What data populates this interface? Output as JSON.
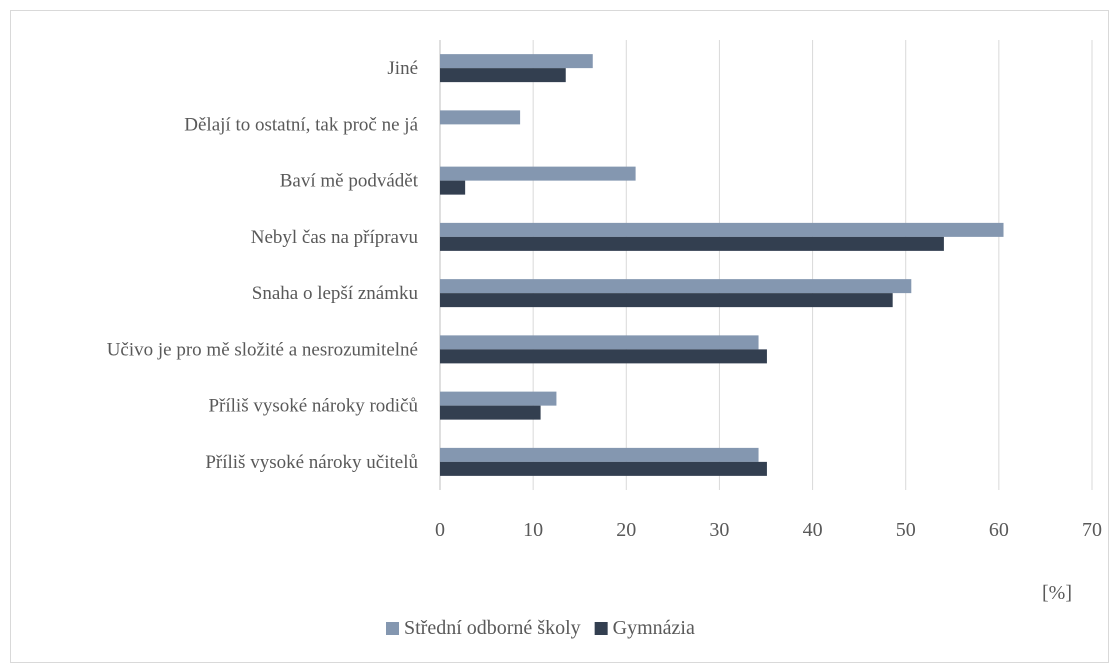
{
  "chart_data": {
    "type": "bar",
    "orientation": "horizontal",
    "categories": [
      "Příliš vysoké nároky učitelů",
      "Příliš vysoké nároky rodičů",
      "Učivo je pro mě složité a nesrozumitelné",
      "Snaha o lepší známku",
      "Nebyl čas na přípravu",
      "Baví mě podvádět",
      "Dělají to ostatní, tak proč ne já",
      "Jiné"
    ],
    "series": [
      {
        "name": "Střední odborné školy",
        "color": "#8497b0",
        "values": [
          34.2,
          12.5,
          34.2,
          50.6,
          60.5,
          21.0,
          8.6,
          16.4
        ]
      },
      {
        "name": "Gymnázia",
        "color": "#333f50",
        "values": [
          35.1,
          10.8,
          35.1,
          48.6,
          54.1,
          2.7,
          0,
          13.5
        ]
      }
    ],
    "xlim": [
      0,
      70
    ],
    "xticks": [
      0,
      10,
      20,
      30,
      40,
      50,
      60,
      70
    ],
    "xtick_labels": [
      "0",
      "10",
      "20",
      "30",
      "40",
      "50",
      "60",
      "70"
    ],
    "xunit": "[%]",
    "grid": "vertical",
    "legend_position": "bottom"
  }
}
